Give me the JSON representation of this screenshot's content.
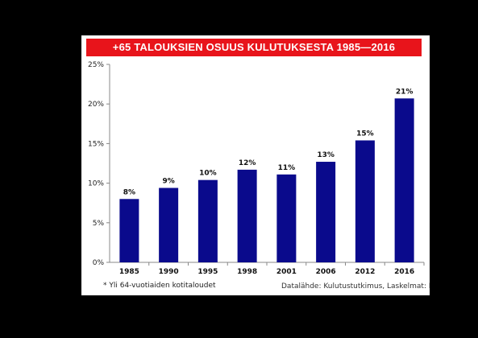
{
  "chart_data": {
    "type": "bar",
    "title": "+65 TALOUKSIEN OSUUS KULUTUKSESTA 1985—2016",
    "categories": [
      "1985",
      "1990",
      "1995",
      "1998",
      "2001",
      "2006",
      "2012",
      "2016"
    ],
    "values": [
      8,
      9.4,
      10.4,
      11.7,
      11.1,
      12.7,
      15.4,
      20.7
    ],
    "data_labels": [
      "8%",
      "9%",
      "10%",
      "12%",
      "11%",
      "13%",
      "15%",
      "21%"
    ],
    "y_ticks": [
      "0%",
      "5%",
      "10%",
      "15%",
      "20%",
      "25%"
    ],
    "ylim": [
      0,
      25
    ],
    "xlabel": "",
    "ylabel": "",
    "grid": false,
    "bar_color": "#0a0a8c",
    "title_bg_color": "#e8141b"
  },
  "footnote": "* Yli 64-vuotiaiden kotitaloudet",
  "source": "Datalähde: Kulutustutkimus, Laskelmat: Nordea"
}
